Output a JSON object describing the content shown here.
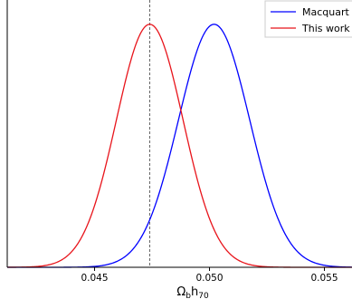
{
  "chart_data": {
    "type": "line",
    "title": "",
    "xlabel": "Ω",
    "xlabel_sub1": "b",
    "xlabel_mid": "h",
    "xlabel_sub2": "70",
    "ylabel": "",
    "xlim": [
      0.0412,
      0.0562
    ],
    "ylim": [
      0,
      1.1
    ],
    "xticks": [
      0.045,
      0.05,
      0.055
    ],
    "xtick_labels": [
      "0.045",
      "0.050",
      "0.055"
    ],
    "yticks_shown": false,
    "grid": false,
    "legend_position": "top-right",
    "series": [
      {
        "name": "Macquart",
        "color": "#0000ff",
        "mean": 0.0502,
        "sigma": 0.00155
      },
      {
        "name": "This work",
        "color": "#e8141b",
        "mean": 0.0474,
        "sigma": 0.00145
      }
    ],
    "vline": {
      "x": 0.0474,
      "style": "dashed",
      "color": "#555555"
    }
  }
}
